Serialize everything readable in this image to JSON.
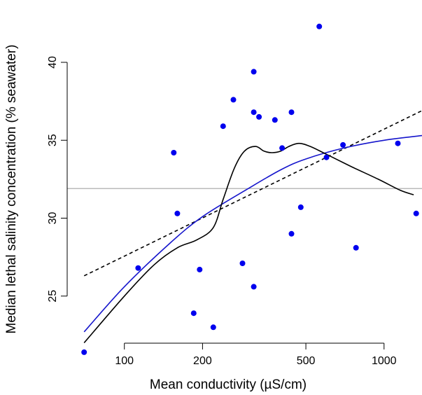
{
  "chart_data": {
    "type": "scatter",
    "title": "",
    "xlabel": "Mean conductivity (µS/cm)",
    "ylabel": "Median lethal salinity concentration (% seawater)",
    "xscale": "log",
    "xlim": [
      50,
      1400
    ],
    "ylim": [
      20,
      44
    ],
    "xticks": [
      100,
      200,
      500,
      1000
    ],
    "xtick_labels": [
      "100",
      "200",
      "500",
      "1000"
    ],
    "yticks": [
      25,
      30,
      35,
      40
    ],
    "ytick_labels": [
      "25",
      "30",
      "35",
      "40"
    ],
    "grid": false,
    "legend": "none",
    "points": {
      "color": "#0000ee",
      "x": [
        70,
        113,
        155,
        160,
        195,
        185,
        220,
        240,
        263,
        285,
        315,
        315,
        315,
        330,
        380,
        405,
        440,
        440,
        478,
        600,
        695,
        780,
        1130,
        1330,
        563
      ],
      "y": [
        21.4,
        26.8,
        34.2,
        30.3,
        26.7,
        23.9,
        23.0,
        35.9,
        37.6,
        27.1,
        39.4,
        36.8,
        25.6,
        36.5,
        36.3,
        34.5,
        36.8,
        29.0,
        30.7,
        33.9,
        34.7,
        28.1,
        34.8,
        30.3,
        42.3
      ]
    },
    "mean_line": {
      "y": 31.9,
      "color": "#bbbbbb"
    },
    "linear_fit": {
      "color": "#000000",
      "style": "dashed",
      "x": [
        70,
        1400
      ],
      "y": [
        26.3,
        36.9
      ]
    },
    "log_fit": {
      "color": "#1515cc",
      "x": [
        70,
        100,
        150,
        200,
        300,
        400,
        500,
        700,
        1000,
        1400
      ],
      "y": [
        22.7,
        25.6,
        28.4,
        30.1,
        31.9,
        33.1,
        33.8,
        34.5,
        35.0,
        35.3
      ]
    },
    "smooth_fit": {
      "color": "#000000",
      "x": [
        70,
        100,
        130,
        160,
        190,
        220,
        240,
        265,
        290,
        320,
        345,
        370,
        400,
        430,
        470,
        520,
        600,
        750,
        950,
        1150,
        1300
      ],
      "y": [
        22.0,
        25.0,
        27.0,
        28.1,
        28.6,
        29.4,
        31.2,
        33.2,
        34.3,
        34.6,
        34.3,
        34.2,
        34.3,
        34.6,
        34.8,
        34.6,
        34.1,
        33.3,
        32.5,
        31.8,
        31.5
      ]
    }
  }
}
